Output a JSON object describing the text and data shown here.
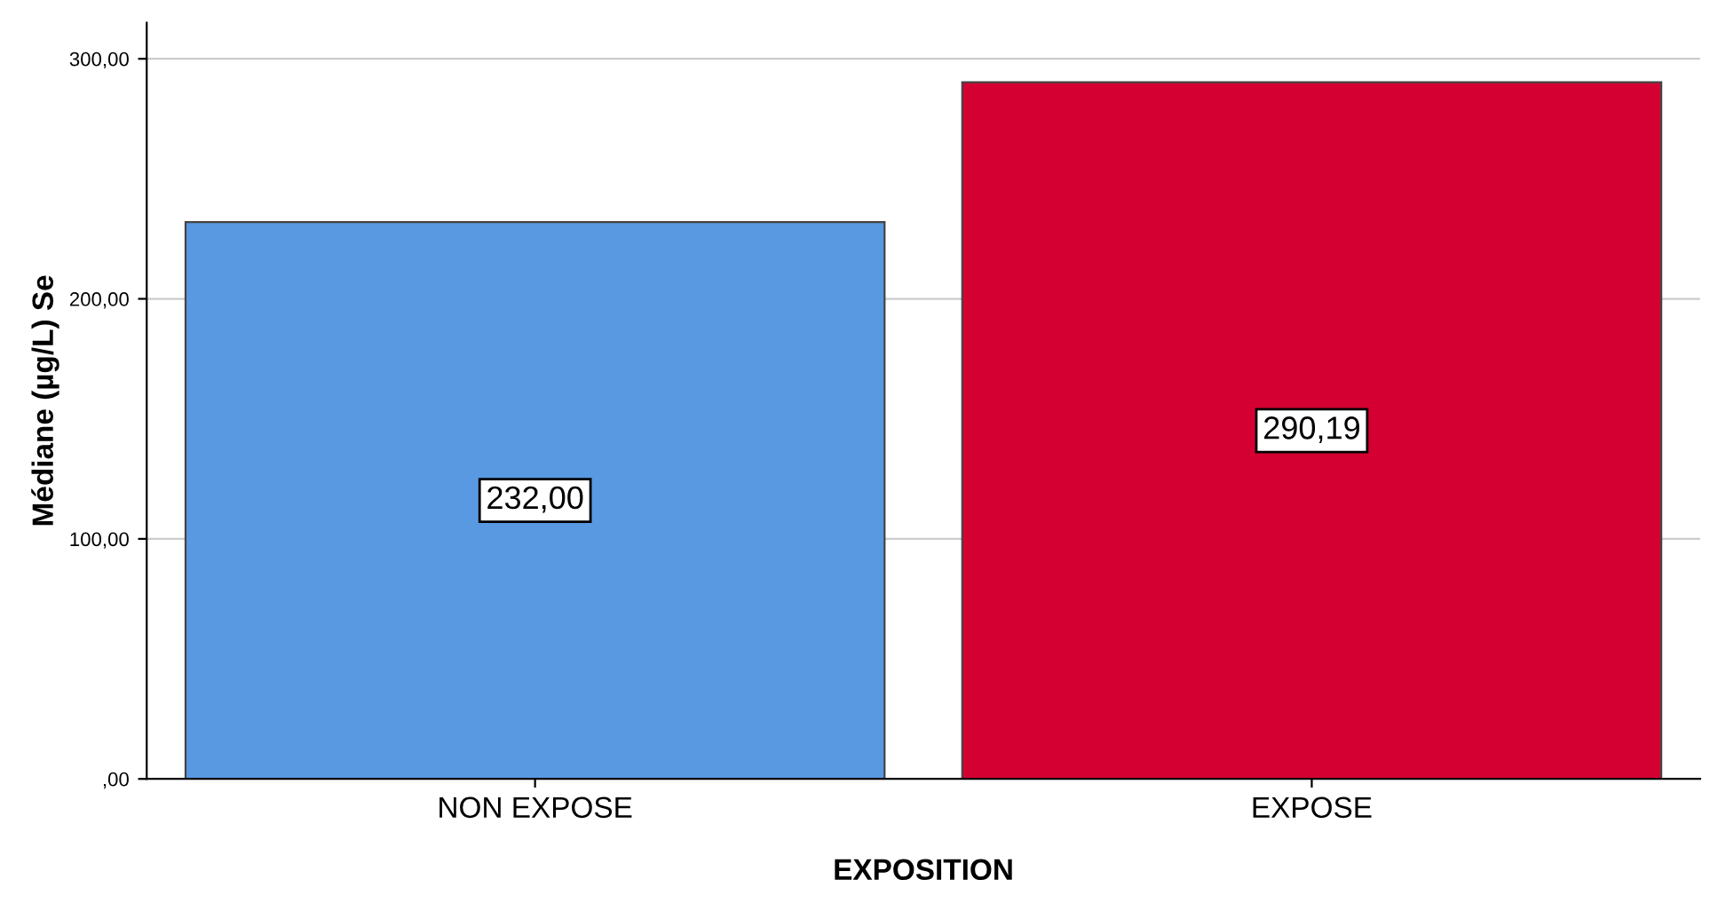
{
  "chart_data": {
    "type": "bar",
    "xlabel": "EXPOSITION",
    "ylabel": "Médiane (µg/L) Se",
    "categories": [
      "NON EXPOSE",
      "EXPOSE"
    ],
    "values": [
      232.0,
      290.19
    ],
    "colors": [
      "#5899e2",
      "#d50032"
    ],
    "value_labels": [
      "232,00",
      "290,19"
    ],
    "ylim": [
      0,
      315
    ],
    "yticks": [
      {
        "value": 0,
        "label": ",00"
      },
      {
        "value": 100,
        "label": "100,00"
      },
      {
        "value": 200,
        "label": "200,00"
      },
      {
        "value": 300,
        "label": "300,00"
      }
    ],
    "grid": "y",
    "legend": false
  }
}
